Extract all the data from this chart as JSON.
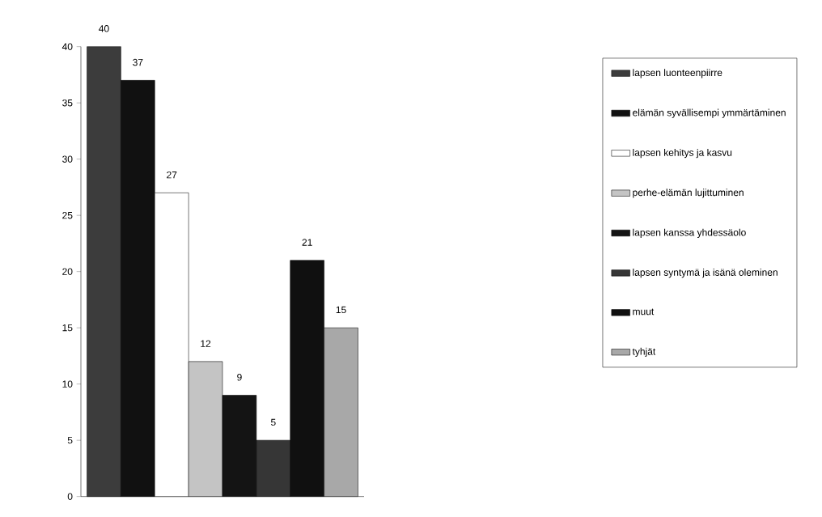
{
  "chart_data": {
    "type": "bar",
    "categories": [
      null
    ],
    "series": [
      {
        "name": "lapsen luonteenpiirre",
        "color": "#3c3c3c",
        "values": [
          40
        ]
      },
      {
        "name": "elämän syvällisempi ymmärtäminen",
        "color": "#111111",
        "values": [
          37
        ]
      },
      {
        "name": "lapsen kehitys ja kasvu",
        "color": "#ffffff",
        "values": [
          27
        ]
      },
      {
        "name": "perhe-elämän lujittuminen",
        "color": "#c4c4c4",
        "values": [
          12
        ]
      },
      {
        "name": "lapsen kanssa yhdessäolo",
        "color": "#141414",
        "values": [
          9
        ]
      },
      {
        "name": "lapsen syntymä ja isänä oleminen",
        "color": "#363636",
        "values": [
          5
        ]
      },
      {
        "name": "muut",
        "color": "#101010",
        "values": [
          21
        ]
      },
      {
        "name": "tyhjät",
        "color": "#a8a8a8",
        "values": [
          15
        ]
      }
    ],
    "ylim": [
      0,
      40
    ],
    "yticks": [
      0,
      5,
      10,
      15,
      20,
      25,
      30,
      35,
      40
    ],
    "data_labels": true,
    "legend": "right",
    "grid": false
  }
}
